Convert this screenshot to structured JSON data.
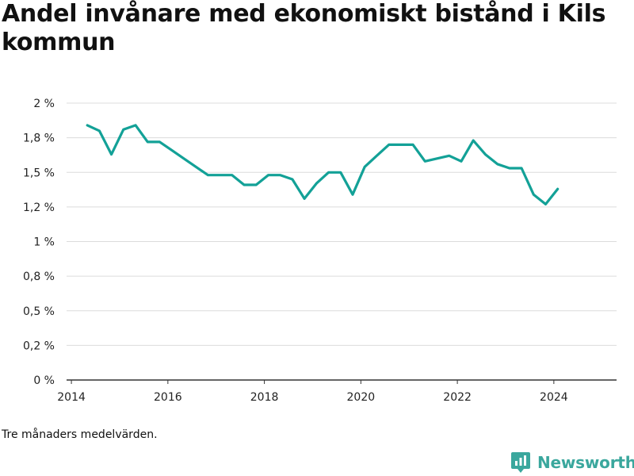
{
  "title": "Andel invånare med ekonomiskt bistånd i Kils kommun",
  "note": "Tre månaders medelvärden.",
  "brand": {
    "name": "Newsworthy",
    "icon": "newsworthy-logo-icon",
    "color": "#3aa79d"
  },
  "chart_data": {
    "type": "line",
    "title": "Andel invånare med ekonomiskt bistånd i Kils kommun",
    "xlabel": "",
    "ylabel": "",
    "xlim": [
      2013.9,
      2025.3
    ],
    "ylim": [
      0,
      2.0
    ],
    "grid": true,
    "line_color": "#13a197",
    "x_ticks": [
      {
        "value": 2014,
        "label": "2014"
      },
      {
        "value": 2016,
        "label": "2016"
      },
      {
        "value": 2018,
        "label": "2018"
      },
      {
        "value": 2020,
        "label": "2020"
      },
      {
        "value": 2022,
        "label": "2022"
      },
      {
        "value": 2024,
        "label": "2024"
      }
    ],
    "y_ticks": [
      {
        "value": 0,
        "label": "0 %"
      },
      {
        "value": 0.25,
        "label": "0,2 %"
      },
      {
        "value": 0.5,
        "label": "0,5 %"
      },
      {
        "value": 0.75,
        "label": "0,8 %"
      },
      {
        "value": 1.0,
        "label": "1 %"
      },
      {
        "value": 1.25,
        "label": "1,2 %"
      },
      {
        "value": 1.5,
        "label": "1,5 %"
      },
      {
        "value": 1.75,
        "label": "1,8 %"
      },
      {
        "value": 2.0,
        "label": "2 %"
      }
    ],
    "series": [
      {
        "x": [
          2014.33,
          2014.58,
          2014.83,
          2015.08,
          2015.33,
          2015.58,
          2015.83,
          2016.08,
          2016.33,
          2016.58,
          2016.83,
          2017.08,
          2017.33,
          2017.58,
          2017.83,
          2018.08,
          2018.33,
          2018.58,
          2018.83,
          2019.08,
          2019.33,
          2019.58,
          2019.83,
          2020.08,
          2020.33,
          2020.58,
          2020.83,
          2021.08,
          2021.33,
          2021.58,
          2021.83,
          2022.08,
          2022.33,
          2022.58,
          2022.83,
          2023.08,
          2023.33,
          2023.58,
          2023.83,
          2024.08
        ],
        "y": [
          1.84,
          1.8,
          1.63,
          1.81,
          1.84,
          1.72,
          1.72,
          1.66,
          1.6,
          1.54,
          1.48,
          1.48,
          1.48,
          1.41,
          1.41,
          1.48,
          1.48,
          1.45,
          1.31,
          1.42,
          1.5,
          1.5,
          1.34,
          1.54,
          1.62,
          1.7,
          1.7,
          1.7,
          1.58,
          1.6,
          1.62,
          1.58,
          1.73,
          1.63,
          1.56,
          1.53,
          1.53,
          1.34,
          1.27,
          1.38
        ]
      }
    ]
  }
}
